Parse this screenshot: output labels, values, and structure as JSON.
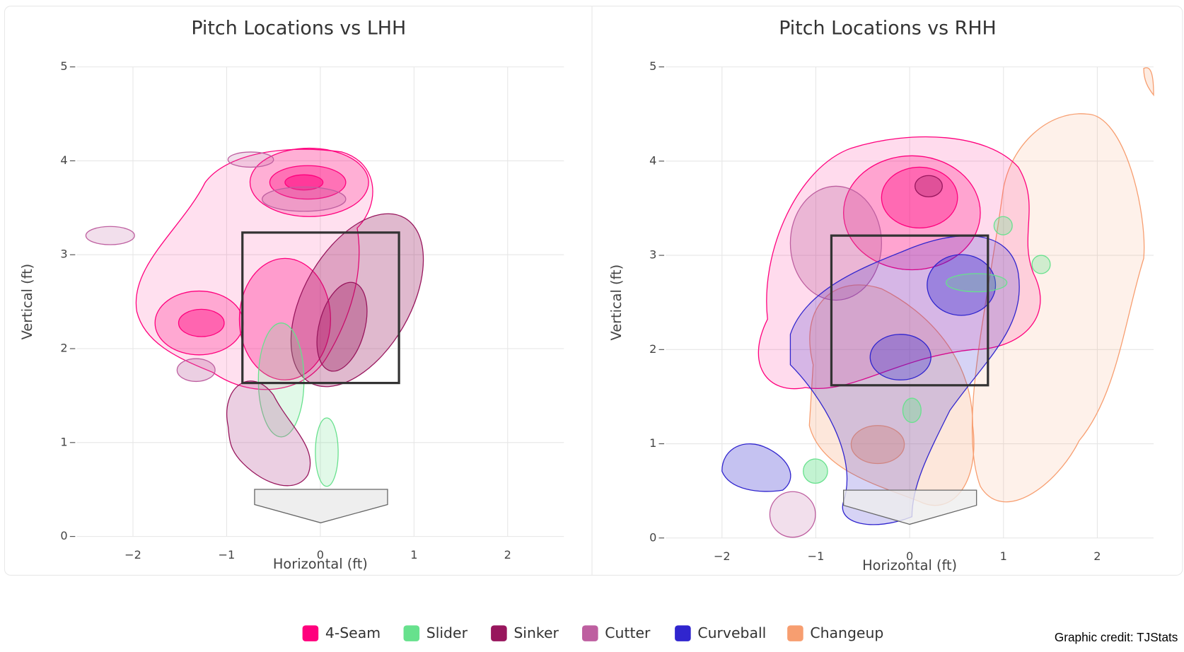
{
  "chart_data": [
    {
      "type": "density",
      "title": "Pitch Locations vs LHH",
      "x_label": "Horizontal (ft)",
      "y_label": "Vertical (ft)",
      "xlim": [
        -2.6,
        2.6
      ],
      "ylim": [
        0,
        5
      ],
      "xticks": [
        {
          "value": -2,
          "label": "−2"
        },
        {
          "value": -1,
          "label": "−1"
        },
        0,
        1,
        2
      ],
      "yticks": [
        0,
        1,
        2,
        3,
        4,
        5
      ],
      "grid": true
    },
    {
      "type": "density",
      "title": "Pitch Locations vs RHH",
      "x_label": "Horizontal (ft)",
      "y_label": "Vertical (ft)",
      "xlim": [
        -2.6,
        2.6
      ],
      "ylim": [
        0,
        5
      ],
      "xticks": [
        {
          "value": -2,
          "label": "−2"
        },
        {
          "value": -1,
          "label": "−1"
        },
        0,
        1,
        2
      ],
      "yticks": [
        0,
        1,
        2,
        3,
        4,
        5
      ],
      "grid": true
    }
  ],
  "legend": [
    {
      "name": "4-Seam",
      "color": "#FF007D"
    },
    {
      "name": "Slider",
      "color": "#67E18D"
    },
    {
      "name": "Sinker",
      "color": "#98165D"
    },
    {
      "name": "Cutter",
      "color": "#BE5FA0"
    },
    {
      "name": "Curveball",
      "color": "#3025CE"
    },
    {
      "name": "Changeup",
      "color": "#F79E70"
    }
  ],
  "credit": "Graphic credit: TJStats"
}
